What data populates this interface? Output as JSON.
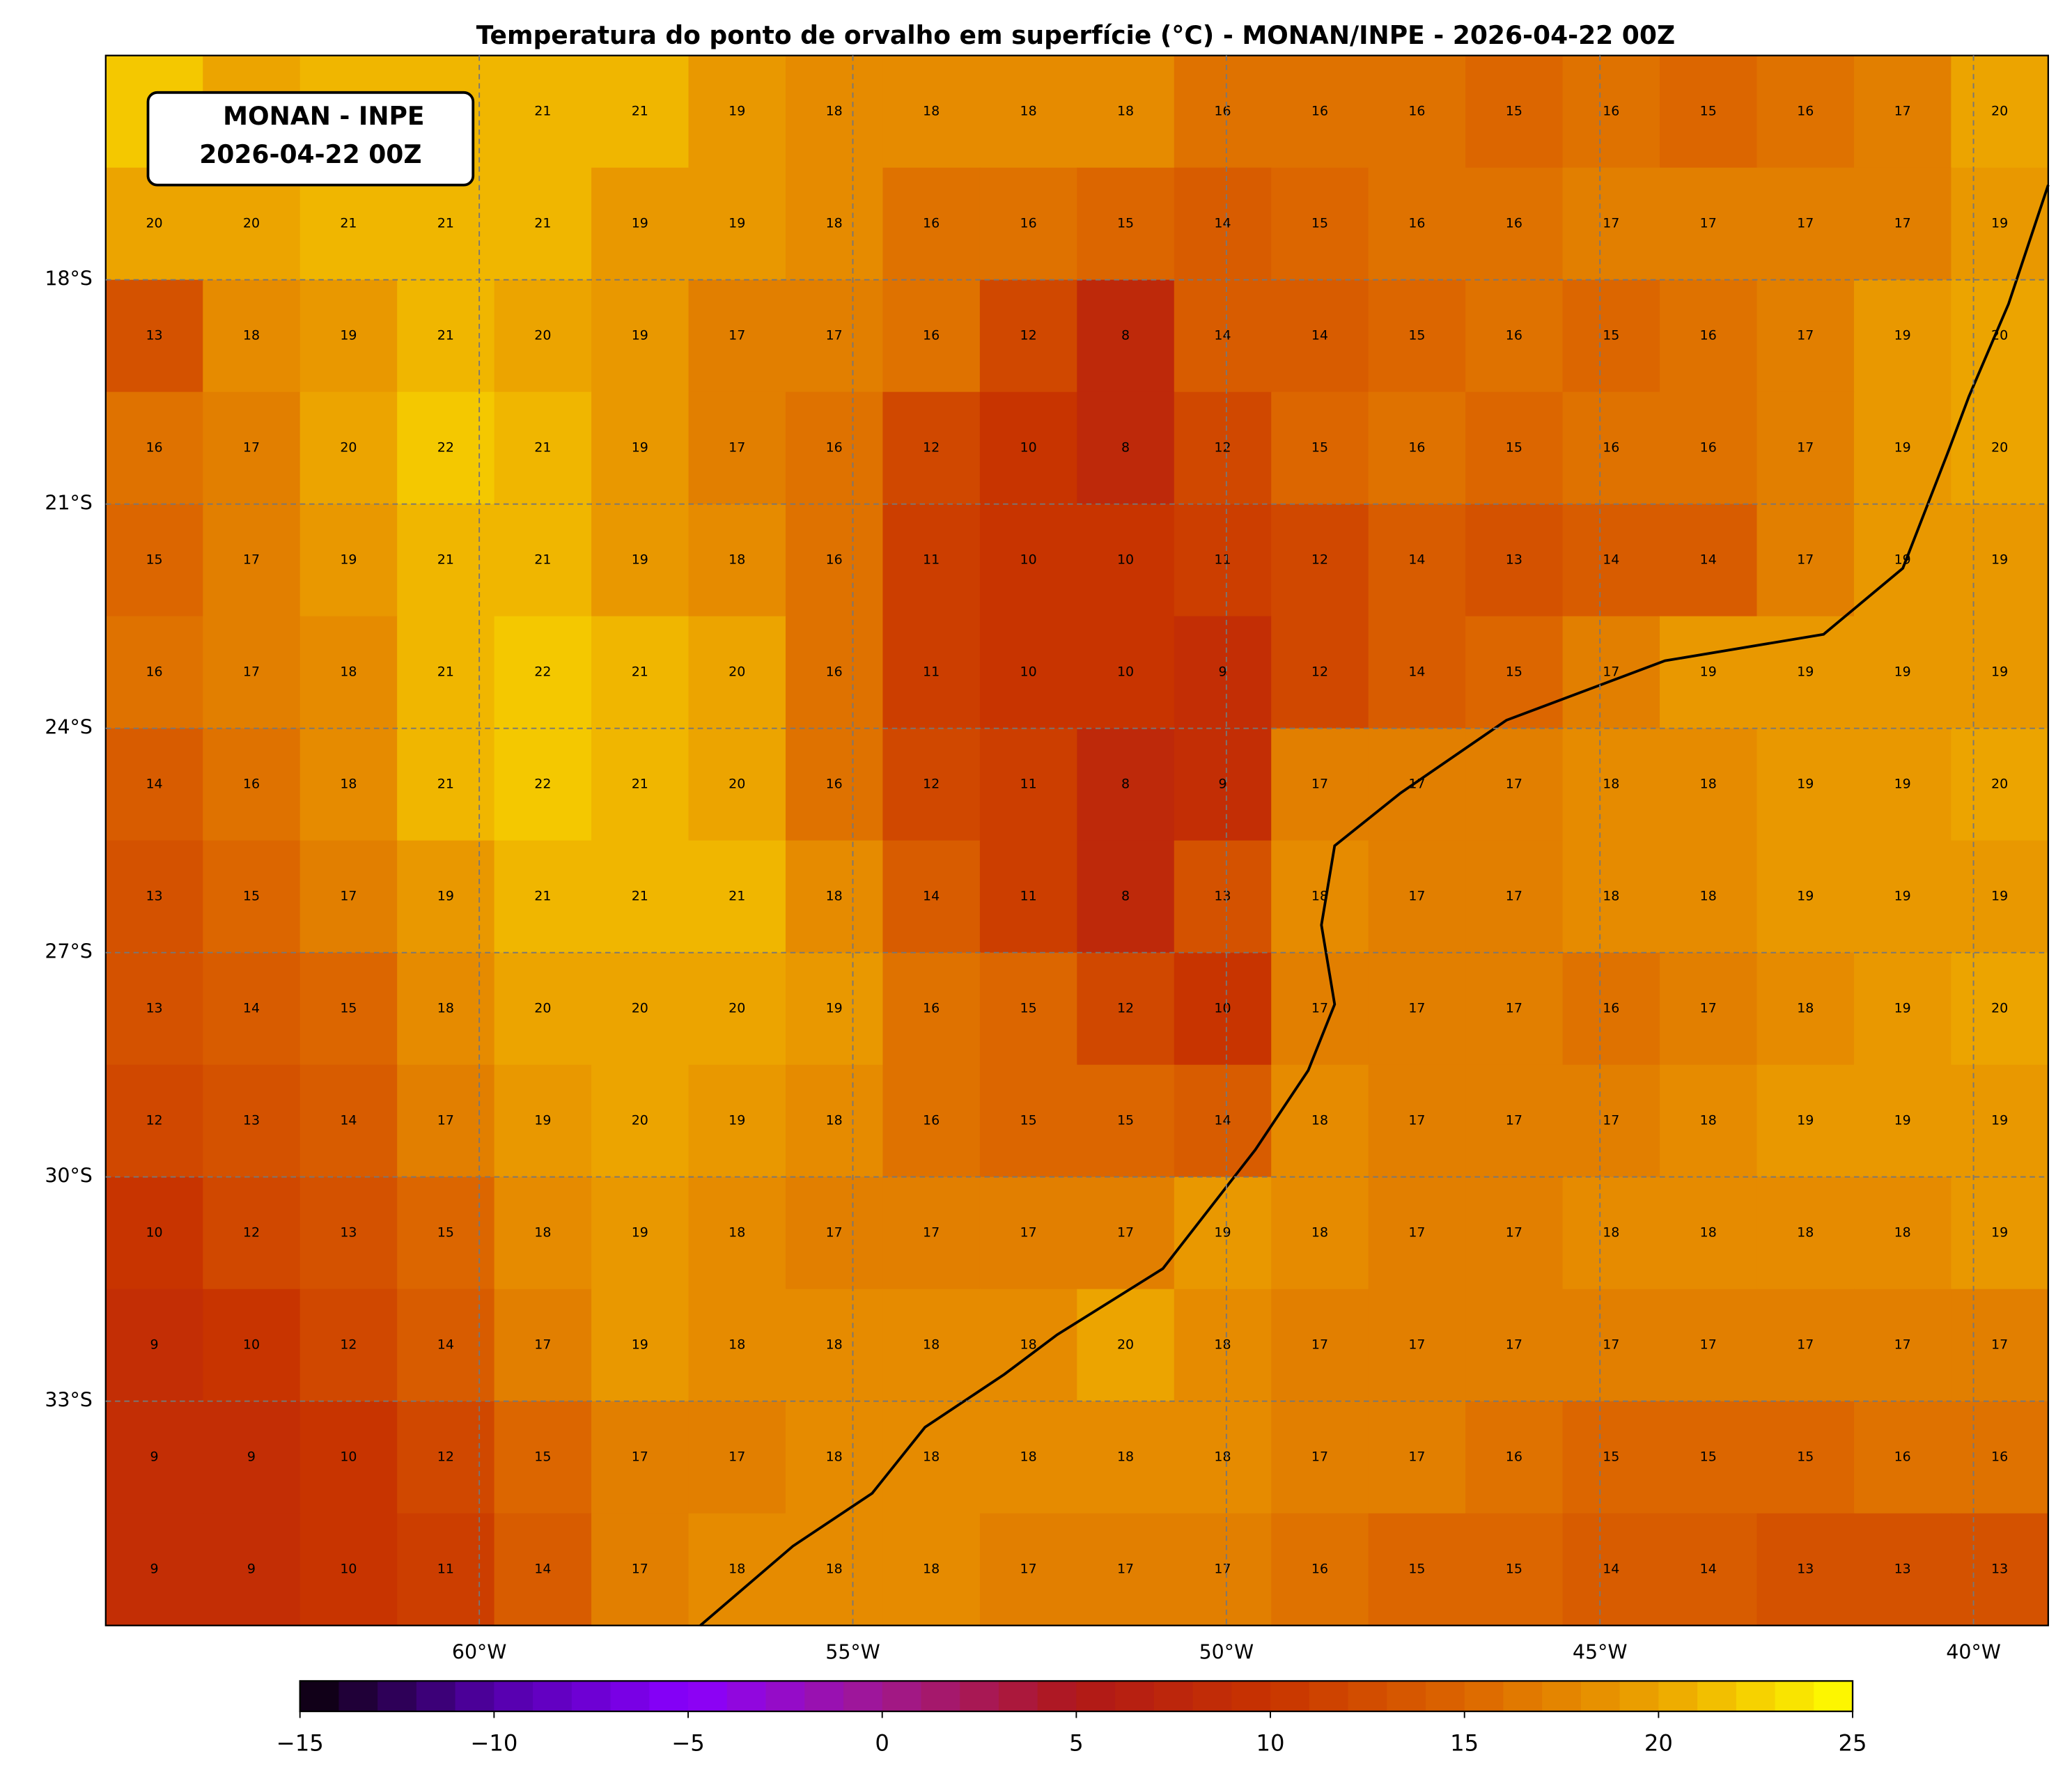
{
  "chart_data": {
    "type": "field-map",
    "title": "Temperatura do ponto de orvalho em superfície (°C) - MONAN/INPE - 2026-04-22 00Z",
    "info_box": [
      "MONAN - INPE",
      "2026-04-22 00Z"
    ],
    "xlim": [
      -65,
      -39
    ],
    "ylim": [
      -36,
      -15
    ],
    "xticks": [
      {
        "value": -60,
        "label": "60°W"
      },
      {
        "value": -55,
        "label": "55°W"
      },
      {
        "value": -50,
        "label": "50°W"
      },
      {
        "value": -45,
        "label": "45°W"
      },
      {
        "value": -40,
        "label": "40°W"
      }
    ],
    "yticks": [
      {
        "value": -18,
        "label": "18°S"
      },
      {
        "value": -21,
        "label": "21°S"
      },
      {
        "value": -24,
        "label": "24°S"
      },
      {
        "value": -27,
        "label": "27°S"
      },
      {
        "value": -30,
        "label": "30°S"
      },
      {
        "value": -33,
        "label": "33°S"
      }
    ],
    "grid": true,
    "clim": [
      -15,
      25
    ],
    "cticks": [
      {
        "value": -15,
        "label": "−15"
      },
      {
        "value": -10,
        "label": "−10"
      },
      {
        "value": -5,
        "label": "−5"
      },
      0,
      5,
      10,
      15,
      20,
      25
    ],
    "colormap": [
      {
        "value": -15,
        "color": "#0a0008"
      },
      {
        "value": -10,
        "color": "#5200a8"
      },
      {
        "value": -5,
        "color": "#8a00ff"
      },
      {
        "value": 0,
        "color": "#a01890"
      },
      {
        "value": 5,
        "color": "#b01818"
      },
      {
        "value": 10,
        "color": "#c83400"
      },
      {
        "value": 15,
        "color": "#dc6600"
      },
      {
        "value": 20,
        "color": "#eca400"
      },
      {
        "value": 25,
        "color": "#ffff00"
      }
    ],
    "values": [
      [
        22,
        20,
        21,
        21,
        21,
        21,
        19,
        18,
        18,
        18,
        18,
        16,
        16,
        16,
        15,
        16,
        15,
        16,
        17,
        20
      ],
      [
        20,
        20,
        21,
        21,
        21,
        19,
        19,
        18,
        16,
        16,
        15,
        14,
        15,
        16,
        16,
        17,
        17,
        17,
        17,
        19
      ],
      [
        13,
        18,
        19,
        21,
        20,
        19,
        17,
        17,
        16,
        12,
        8,
        14,
        14,
        15,
        16,
        15,
        16,
        17,
        19,
        20
      ],
      [
        16,
        17,
        20,
        22,
        21,
        19,
        17,
        16,
        12,
        10,
        8,
        12,
        15,
        16,
        15,
        16,
        16,
        17,
        19,
        20
      ],
      [
        15,
        17,
        19,
        21,
        21,
        19,
        18,
        16,
        11,
        10,
        10,
        11,
        12,
        14,
        13,
        14,
        14,
        17,
        19,
        19
      ],
      [
        16,
        17,
        18,
        21,
        22,
        21,
        20,
        16,
        11,
        10,
        10,
        9,
        12,
        14,
        15,
        17,
        19,
        19,
        19,
        19
      ],
      [
        14,
        16,
        18,
        21,
        22,
        21,
        20,
        16,
        12,
        11,
        8,
        9,
        17,
        17,
        17,
        18,
        18,
        19,
        19,
        20
      ],
      [
        13,
        15,
        17,
        19,
        21,
        21,
        21,
        18,
        14,
        11,
        8,
        13,
        18,
        17,
        17,
        18,
        18,
        19,
        19,
        19
      ],
      [
        13,
        14,
        15,
        18,
        20,
        20,
        20,
        19,
        16,
        15,
        12,
        10,
        17,
        17,
        17,
        16,
        17,
        18,
        19,
        20
      ],
      [
        12,
        13,
        14,
        17,
        19,
        20,
        19,
        18,
        16,
        15,
        15,
        14,
        18,
        17,
        17,
        17,
        18,
        19,
        19,
        19
      ],
      [
        10,
        12,
        13,
        15,
        18,
        19,
        18,
        17,
        17,
        17,
        17,
        19,
        18,
        17,
        17,
        18,
        18,
        18,
        18,
        19
      ],
      [
        9,
        10,
        12,
        14,
        17,
        19,
        18,
        18,
        18,
        18,
        20,
        18,
        17,
        17,
        17,
        17,
        17,
        17,
        17,
        17
      ],
      [
        9,
        9,
        10,
        12,
        15,
        17,
        17,
        18,
        18,
        18,
        18,
        18,
        17,
        17,
        16,
        15,
        15,
        15,
        16,
        16
      ],
      [
        9,
        9,
        10,
        11,
        14,
        17,
        18,
        18,
        18,
        17,
        17,
        17,
        16,
        15,
        15,
        14,
        14,
        13,
        13,
        13
      ]
    ]
  }
}
